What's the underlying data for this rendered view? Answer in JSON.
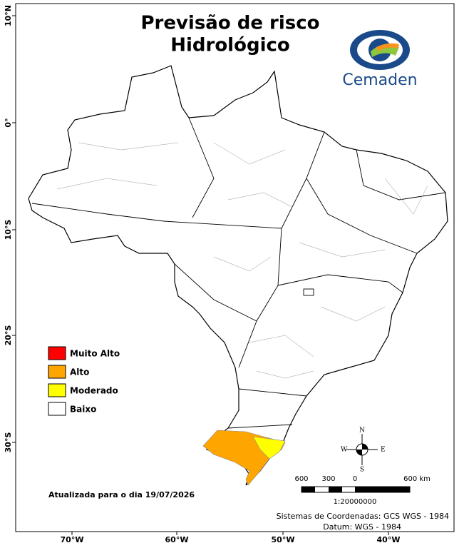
{
  "header": {
    "title_lines": [
      "Previsão de risco",
      "Hidrológico"
    ],
    "logo_text": "Cemaden"
  },
  "legend": {
    "items": [
      {
        "label": "Muito Alto",
        "color": "#ff0000"
      },
      {
        "label": "Alto",
        "color": "#ffa500"
      },
      {
        "label": "Moderado",
        "color": "#ffff00"
      },
      {
        "label": "Baixo",
        "color": "#ffffff"
      }
    ]
  },
  "updated": "Atualizada para o dia 19/07/2026",
  "latitude_labels": [
    "10°N",
    "0°",
    "10°S",
    "20°S",
    "30°S"
  ],
  "longitude_labels": [
    "70°W",
    "60°W",
    "50°W",
    "40°W"
  ],
  "scale_bar": {
    "labels": [
      "600",
      "300",
      "0",
      "600 km"
    ],
    "ratio": "1:20000000"
  },
  "compass": {
    "n": "N",
    "s": "S",
    "e": "E",
    "w": "W"
  },
  "credits": [
    "Sistemas de Coordenadas: GCS WGS - 1984",
    "Datum: WGS - 1984"
  ]
}
